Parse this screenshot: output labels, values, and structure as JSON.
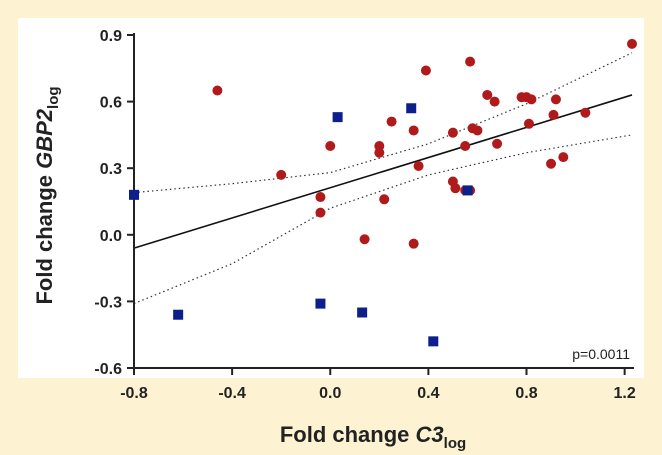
{
  "chart_data": {
    "type": "scatter",
    "xlabel": {
      "main": "Fold change ",
      "italic": "C3",
      "sub": "log"
    },
    "ylabel": {
      "main": "Fold change ",
      "italic": "GBP2",
      "sub": "log"
    },
    "xlim": [
      -0.8,
      1.23
    ],
    "ylim": [
      -0.6,
      0.9
    ],
    "xticks": [
      "-0.8",
      "-0.4",
      "0.0",
      "0.4",
      "0.8",
      "1.2"
    ],
    "yticks": [
      "0.9",
      "0.6",
      "0.3",
      "0.0",
      "-0.3",
      "-0.6"
    ],
    "annotation": "p=0.0011",
    "colors": {
      "red": "#b01a1a",
      "blue": "#0d1f8c",
      "background": "#fdf3d3",
      "plot": "#ffffff"
    },
    "series": [
      {
        "marker": "circle",
        "color": "#b01a1a",
        "points": [
          [
            -0.46,
            0.65
          ],
          [
            -0.2,
            0.27
          ],
          [
            -0.04,
            0.17
          ],
          [
            -0.04,
            0.1
          ],
          [
            0.0,
            0.4
          ],
          [
            0.14,
            -0.02
          ],
          [
            0.2,
            0.4
          ],
          [
            0.2,
            0.37
          ],
          [
            0.22,
            0.16
          ],
          [
            0.25,
            0.51
          ],
          [
            0.34,
            0.47
          ],
          [
            0.34,
            -0.04
          ],
          [
            0.36,
            0.31
          ],
          [
            0.39,
            0.74
          ],
          [
            0.5,
            0.46
          ],
          [
            0.5,
            0.24
          ],
          [
            0.51,
            0.21
          ],
          [
            0.55,
            0.2
          ],
          [
            0.55,
            0.4
          ],
          [
            0.57,
            0.2
          ],
          [
            0.57,
            0.78
          ],
          [
            0.58,
            0.48
          ],
          [
            0.6,
            0.47
          ],
          [
            0.64,
            0.63
          ],
          [
            0.67,
            0.6
          ],
          [
            0.68,
            0.41
          ],
          [
            0.78,
            0.62
          ],
          [
            0.8,
            0.62
          ],
          [
            0.81,
            0.5
          ],
          [
            0.82,
            0.61
          ],
          [
            0.9,
            0.32
          ],
          [
            0.91,
            0.54
          ],
          [
            0.92,
            0.61
          ],
          [
            0.95,
            0.35
          ],
          [
            1.04,
            0.55
          ],
          [
            1.23,
            0.86
          ]
        ]
      },
      {
        "marker": "square",
        "color": "#0d1f8c",
        "points": [
          [
            -0.8,
            0.18
          ],
          [
            -0.62,
            -0.36
          ],
          [
            -0.04,
            -0.31
          ],
          [
            0.03,
            0.53
          ],
          [
            0.13,
            -0.35
          ],
          [
            0.33,
            0.57
          ],
          [
            0.42,
            -0.48
          ],
          [
            0.56,
            0.2
          ]
        ]
      }
    ],
    "regression": {
      "x": [
        -0.8,
        1.23
      ],
      "y": [
        -0.06,
        0.63
      ]
    },
    "ci_upper": {
      "x": [
        -0.8,
        -0.4,
        0.0,
        0.4,
        0.8,
        1.23
      ],
      "y": [
        0.19,
        0.23,
        0.28,
        0.41,
        0.59,
        0.82
      ]
    },
    "ci_lower": {
      "x": [
        -0.8,
        -0.4,
        0.0,
        0.4,
        0.8,
        1.23
      ],
      "y": [
        -0.31,
        -0.13,
        0.12,
        0.27,
        0.37,
        0.45
      ]
    }
  }
}
